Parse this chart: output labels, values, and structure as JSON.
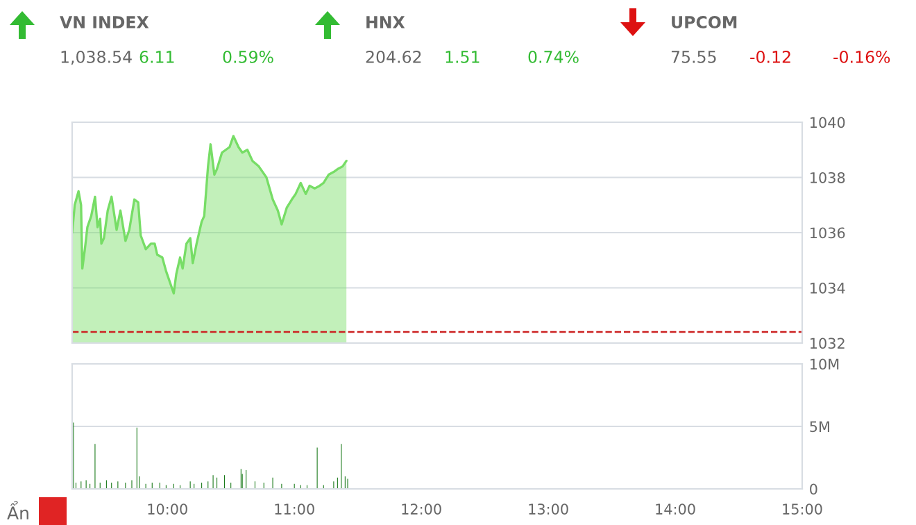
{
  "chart_data": [
    {
      "type": "other",
      "title": "VN INDEX",
      "annotations": [
        "1,038.54",
        "6.11",
        "0.59%"
      ],
      "colors": [
        "#666666",
        "#33bb33",
        "#33bb33"
      ]
    },
    {
      "type": "other",
      "title": "HNX",
      "annotations": [
        "204.62",
        "1.51",
        "0.74%"
      ],
      "colors": [
        "#666666",
        "#33bb33",
        "#33bb33"
      ]
    },
    {
      "type": "other",
      "title": "UPCOM",
      "annotations": [
        "75.55",
        "-0.12",
        "-0.16%"
      ],
      "colors": [
        "#666666",
        "#dd1111",
        "#dd1111"
      ]
    },
    {
      "type": "area",
      "x": [
        9.25,
        9.27,
        9.3,
        9.32,
        9.33,
        9.35,
        9.37,
        9.4,
        9.43,
        9.45,
        9.47,
        9.48,
        9.5,
        9.53,
        9.56,
        9.57,
        9.6,
        9.63,
        9.67,
        9.7,
        9.74,
        9.77,
        9.79,
        9.83,
        9.87,
        9.9,
        9.92,
        9.96,
        9.99,
        10.02,
        10.05,
        10.07,
        10.1,
        10.12,
        10.15,
        10.18,
        10.2,
        10.23,
        10.27,
        10.29,
        10.32,
        10.34,
        10.37,
        10.39,
        10.43,
        10.49,
        10.52,
        10.56,
        10.59,
        10.63,
        10.67,
        10.72,
        10.78,
        10.83,
        10.87,
        10.9,
        10.94,
        10.98,
        11.01,
        11.05,
        11.09,
        11.12,
        11.16,
        11.2,
        11.23,
        11.27,
        11.31,
        11.34,
        11.38,
        11.41
      ],
      "series": [
        {
          "color": "#77dd66",
          "values": [
            1036.0,
            1037.0,
            1037.5,
            1037.0,
            1034.7,
            1035.4,
            1036.2,
            1036.6,
            1037.3,
            1036.2,
            1036.5,
            1035.6,
            1035.8,
            1036.8,
            1037.3,
            1037.0,
            1036.1,
            1036.8,
            1035.7,
            1036.1,
            1037.2,
            1037.1,
            1035.9,
            1035.4,
            1035.6,
            1035.6,
            1035.2,
            1035.1,
            1034.6,
            1034.2,
            1033.8,
            1034.5,
            1035.1,
            1034.7,
            1035.6,
            1035.8,
            1034.9,
            1035.6,
            1036.4,
            1036.6,
            1038.4,
            1039.2,
            1038.1,
            1038.3,
            1038.9,
            1039.1,
            1039.5,
            1039.1,
            1038.9,
            1039.0,
            1038.6,
            1038.4,
            1038.0,
            1037.2,
            1036.8,
            1036.3,
            1036.9,
            1037.2,
            1037.4,
            1037.8,
            1037.4,
            1037.7,
            1037.6,
            1037.7,
            1037.8,
            1038.1,
            1038.2,
            1038.3,
            1038.4,
            1038.6
          ]
        }
      ],
      "xlim": [
        9.25,
        15
      ],
      "ylim": [
        1032,
        1040
      ],
      "yticks": [
        1032,
        1034,
        1036,
        1038,
        1040
      ],
      "tick_labels": "y",
      "grid": "y",
      "ref_lines": [
        {
          "axis": "y",
          "value": 1032.4,
          "color": "#cc2222",
          "line_style": "dashed"
        }
      ]
    },
    {
      "type": "bar",
      "x": [
        9.26,
        9.28,
        9.32,
        9.36,
        9.39,
        9.43,
        9.47,
        9.52,
        9.56,
        9.61,
        9.67,
        9.72,
        9.76,
        9.78,
        9.83,
        9.88,
        9.94,
        9.99,
        10.05,
        10.1,
        10.18,
        10.21,
        10.27,
        10.32,
        10.36,
        10.39,
        10.45,
        10.5,
        10.58,
        10.59,
        10.62,
        10.69,
        10.76,
        10.83,
        10.9,
        11.0,
        11.05,
        11.1,
        11.18,
        11.23,
        11.31,
        11.34,
        11.37,
        11.4,
        11.42
      ],
      "series": [
        {
          "color": "#1a7a1a",
          "values": [
            5.3,
            0.5,
            0.6,
            0.7,
            0.4,
            3.6,
            0.5,
            0.7,
            0.5,
            0.6,
            0.5,
            0.7,
            4.9,
            1.0,
            0.4,
            0.5,
            0.5,
            0.3,
            0.4,
            0.3,
            0.6,
            0.4,
            0.5,
            0.6,
            1.1,
            0.9,
            1.1,
            0.5,
            1.6,
            1.2,
            1.5,
            0.6,
            0.5,
            0.9,
            0.4,
            0.4,
            0.3,
            0.3,
            3.3,
            0.3,
            0.6,
            0.9,
            3.6,
            1.0,
            0.8
          ]
        }
      ],
      "xlim": [
        9.25,
        15
      ],
      "ylim": [
        0,
        10
      ],
      "yticks": [
        0,
        {
          "value": 5,
          "label": "5M"
        },
        {
          "value": 10,
          "label": "10M"
        }
      ],
      "xticks": [
        {
          "value": 10,
          "label": "10:00"
        },
        {
          "value": 11,
          "label": "11:00"
        },
        {
          "value": 12,
          "label": "12:00"
        },
        {
          "value": 13,
          "label": "13:00"
        },
        {
          "value": 14,
          "label": "14:00"
        },
        {
          "value": 15,
          "label": "15:00"
        }
      ],
      "grid": "y",
      "annotations": [
        "Ẩn"
      ]
    }
  ]
}
